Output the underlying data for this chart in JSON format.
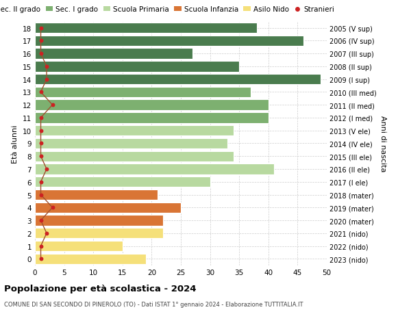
{
  "ages": [
    18,
    17,
    16,
    15,
    14,
    13,
    12,
    11,
    10,
    9,
    8,
    7,
    6,
    5,
    4,
    3,
    2,
    1,
    0
  ],
  "right_labels": [
    "2005 (V sup)",
    "2006 (IV sup)",
    "2007 (III sup)",
    "2008 (II sup)",
    "2009 (I sup)",
    "2010 (III med)",
    "2011 (II med)",
    "2012 (I med)",
    "2013 (V ele)",
    "2014 (IV ele)",
    "2015 (III ele)",
    "2016 (II ele)",
    "2017 (I ele)",
    "2018 (mater)",
    "2019 (mater)",
    "2020 (mater)",
    "2021 (nido)",
    "2022 (nido)",
    "2023 (nido)"
  ],
  "bar_values": [
    38,
    46,
    27,
    35,
    49,
    37,
    40,
    40,
    34,
    33,
    34,
    41,
    30,
    21,
    25,
    22,
    22,
    15,
    19
  ],
  "stranieri_values": [
    1,
    1,
    1,
    2,
    2,
    1,
    3,
    1,
    1,
    1,
    1,
    2,
    1,
    1,
    3,
    1,
    2,
    1,
    1
  ],
  "bar_colors": [
    "#4a7c4e",
    "#4a7c4e",
    "#4a7c4e",
    "#4a7c4e",
    "#4a7c4e",
    "#7db070",
    "#7db070",
    "#7db070",
    "#b8d9a0",
    "#b8d9a0",
    "#b8d9a0",
    "#b8d9a0",
    "#b8d9a0",
    "#d97535",
    "#d97535",
    "#d97535",
    "#f5e07a",
    "#f5e07a",
    "#f5e07a"
  ],
  "stranieri_color": "#cc2222",
  "stranieri_line_color": "#a05030",
  "title": "Popolazione per età scolastica - 2024",
  "subtitle": "COMUNE DI SAN SECONDO DI PINEROLO (TO) - Dati ISTAT 1° gennaio 2024 - Elaborazione TUTTITALIA.IT",
  "ylabel": "Età alunni",
  "right_ylabel": "Anni di nascita",
  "xlim": [
    0,
    50
  ],
  "xticks": [
    0,
    5,
    10,
    15,
    20,
    25,
    30,
    35,
    40,
    45,
    50
  ],
  "legend_labels": [
    "Sec. II grado",
    "Sec. I grado",
    "Scuola Primaria",
    "Scuola Infanzia",
    "Asilo Nido",
    "Stranieri"
  ],
  "legend_colors": [
    "#4a7c4e",
    "#7db070",
    "#b8d9a0",
    "#d97535",
    "#f5e07a",
    "#cc2222"
  ],
  "background_color": "#ffffff",
  "grid_color": "#cccccc"
}
